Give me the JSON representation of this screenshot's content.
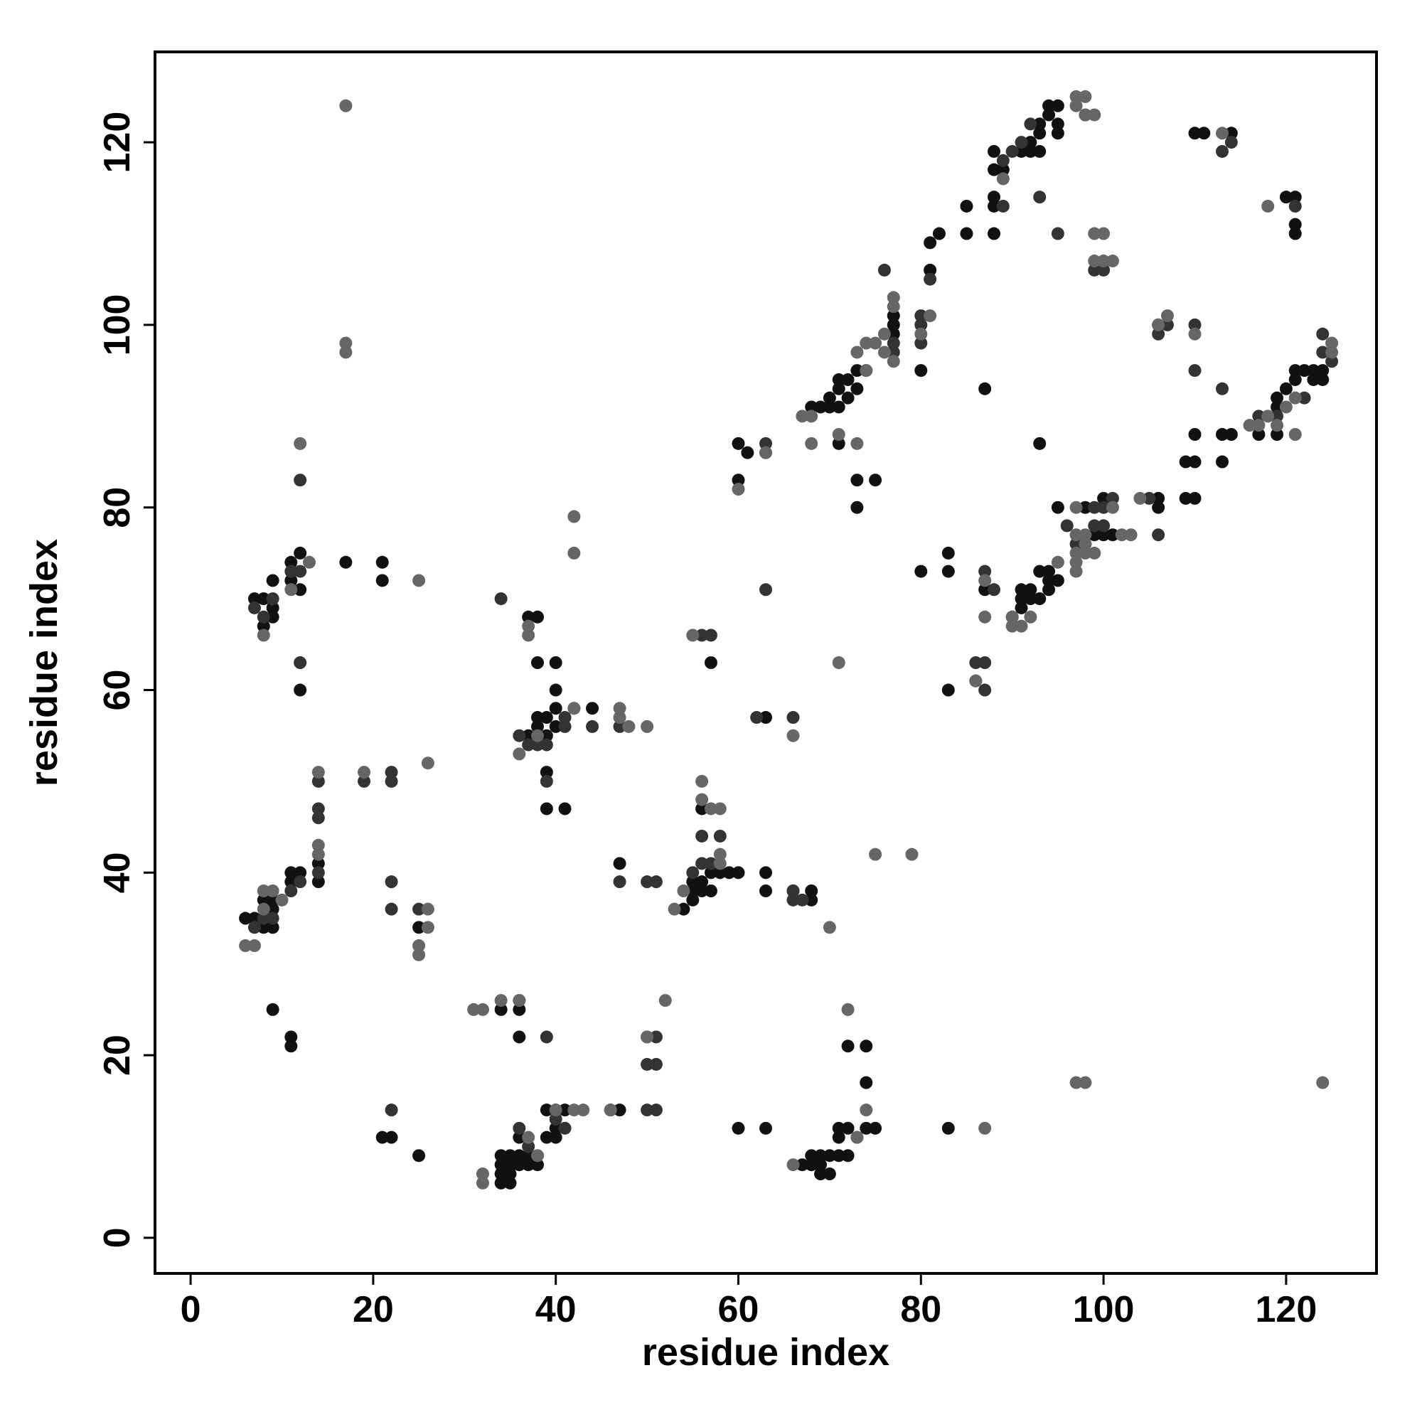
{
  "chart_data": {
    "type": "scatter",
    "x_label": "residue index",
    "y_label": "residue index",
    "xlim": [
      -3.9,
      129.9
    ],
    "ylim": [
      -3.9,
      129.9
    ],
    "xticks": [
      0,
      20,
      40,
      60,
      80,
      100,
      120
    ],
    "yticks": [
      0,
      20,
      40,
      60,
      80,
      100,
      120
    ],
    "series": [
      {
        "color": "#111111",
        "x": [
          7,
          8,
          9,
          9,
          9,
          8,
          11,
          12,
          12,
          11,
          12,
          17,
          21,
          21,
          6,
          7,
          8,
          8,
          9,
          9,
          9,
          11,
          11,
          12,
          14,
          14,
          9,
          11,
          11,
          21,
          22,
          25,
          25,
          34,
          34,
          34,
          34,
          35,
          35,
          35,
          35,
          36,
          36,
          36,
          37,
          37,
          38,
          39,
          39,
          40,
          40,
          40,
          41,
          46,
          47,
          34,
          36,
          36,
          37,
          38,
          38,
          40,
          40,
          38,
          39,
          40,
          40,
          39,
          38,
          37,
          39,
          39,
          41,
          44,
          47,
          55,
          55,
          56,
          56,
          57,
          57,
          58,
          59,
          60,
          56,
          54,
          55,
          63,
          63,
          60,
          63,
          66,
          68,
          68,
          63,
          60,
          60,
          61,
          57,
          67,
          68,
          68,
          69,
          69,
          69,
          70,
          70,
          71,
          71,
          71,
          72,
          72,
          72,
          73,
          74,
          74,
          74,
          75,
          83,
          68,
          69,
          70,
          70,
          71,
          71,
          71,
          72,
          72,
          73,
          73,
          74,
          71,
          73,
          75,
          73,
          77,
          77,
          77,
          80,
          81,
          81,
          82,
          85,
          85,
          88,
          88,
          88,
          88,
          88,
          89,
          91,
          92,
          92,
          93,
          93,
          93,
          94,
          94,
          95,
          95,
          95,
          87,
          93,
          95,
          80,
          83,
          83,
          83,
          87,
          90,
          91,
          91,
          91,
          92,
          92,
          93,
          93,
          94,
          94,
          95,
          94,
          99,
          100,
          101,
          98,
          100,
          106,
          106,
          109,
          110,
          109,
          110,
          110,
          113,
          113,
          114,
          117,
          119,
          119,
          119,
          120,
          121,
          121,
          122,
          123,
          123,
          124,
          124,
          110,
          111,
          114,
          120,
          121,
          121,
          121
        ],
        "values": [
          70,
          70,
          69,
          72,
          68,
          67,
          74,
          75,
          71,
          72,
          60,
          74,
          74,
          72,
          35,
          35,
          34,
          37,
          34,
          37,
          36,
          40,
          39,
          40,
          41,
          39,
          25,
          22,
          21,
          11,
          11,
          9,
          34,
          9,
          8,
          7,
          6,
          9,
          8,
          7,
          6,
          9,
          8,
          11,
          9,
          8,
          8,
          11,
          14,
          11,
          12,
          14,
          14,
          14,
          14,
          25,
          22,
          25,
          68,
          68,
          63,
          63,
          60,
          57,
          57,
          56,
          58,
          55,
          56,
          55,
          51,
          47,
          47,
          58,
          41,
          38,
          37,
          38,
          39,
          38,
          40,
          40,
          40,
          40,
          47,
          36,
          39,
          40,
          38,
          12,
          12,
          38,
          38,
          37,
          57,
          83,
          87,
          86,
          63,
          8,
          8,
          9,
          8,
          9,
          7,
          9,
          7,
          9,
          11,
          12,
          12,
          9,
          21,
          11,
          12,
          21,
          17,
          12,
          12,
          91,
          91,
          92,
          91,
          93,
          94,
          91,
          92,
          94,
          93,
          95,
          95,
          87,
          83,
          83,
          80,
          100,
          101,
          99,
          95,
          106,
          109,
          110,
          113,
          110,
          113,
          114,
          117,
          119,
          110,
          117,
          119,
          119,
          120,
          121,
          122,
          119,
          123,
          124,
          121,
          122,
          124,
          93,
          87,
          80,
          73,
          75,
          73,
          60,
          71,
          68,
          69,
          70,
          71,
          70,
          71,
          73,
          70,
          71,
          72,
          72,
          73,
          77,
          77,
          77,
          80,
          81,
          81,
          80,
          81,
          81,
          85,
          85,
          88,
          85,
          88,
          88,
          88,
          88,
          91,
          92,
          93,
          94,
          95,
          95,
          94,
          95,
          94,
          95,
          121,
          121,
          121,
          114,
          114,
          111,
          110
        ]
      },
      {
        "color": "#333333",
        "x": [
          7,
          8,
          9,
          8,
          9,
          7,
          11,
          12,
          12,
          12,
          14,
          14,
          14,
          19,
          22,
          22,
          22,
          22,
          25,
          11,
          12,
          14,
          36,
          37,
          38,
          39,
          39,
          41,
          41,
          42,
          44,
          47,
          47,
          50,
          51,
          50,
          51,
          50,
          51,
          50,
          51,
          40,
          41,
          38,
          37,
          36,
          56,
          57,
          58,
          56,
          55,
          62,
          66,
          66,
          67,
          66,
          63,
          56,
          63,
          63,
          57,
          34,
          22,
          39,
          36,
          76,
          77,
          77,
          80,
          80,
          80,
          81,
          86,
          86,
          87,
          87,
          88,
          87,
          89,
          89,
          90,
          91,
          92,
          93,
          95,
          98,
          96,
          98,
          99,
          100,
          101,
          97,
          99,
          100,
          106,
          106,
          107,
          110,
          110,
          113,
          119,
          122,
          124,
          125,
          124,
          113,
          114,
          121,
          99,
          100,
          106,
          117,
          105
        ],
        "values": [
          69,
          68,
          70,
          35,
          35,
          34,
          73,
          73,
          63,
          83,
          47,
          46,
          50,
          50,
          51,
          50,
          39,
          36,
          36,
          38,
          39,
          40,
          55,
          54,
          54,
          54,
          50,
          56,
          57,
          58,
          56,
          56,
          39,
          39,
          39,
          22,
          22,
          19,
          19,
          14,
          14,
          13,
          12,
          9,
          10,
          12,
          44,
          41,
          44,
          41,
          40,
          57,
          38,
          37,
          37,
          57,
          71,
          66,
          87,
          86,
          66,
          70,
          14,
          22,
          26,
          106,
          97,
          98,
          100,
          98,
          101,
          105,
          61,
          63,
          63,
          60,
          71,
          73,
          113,
          118,
          119,
          120,
          122,
          114,
          110,
          123,
          78,
          76,
          80,
          80,
          81,
          76,
          78,
          78,
          99,
          100,
          100,
          100,
          95,
          93,
          90,
          92,
          97,
          96,
          99,
          119,
          120,
          113,
          106,
          106,
          77,
          90,
          81
        ]
      },
      {
        "color": "#666666",
        "x": [
          6,
          7,
          8,
          8,
          9,
          10,
          8,
          11,
          13,
          12,
          14,
          14,
          14,
          17,
          17,
          17,
          19,
          25,
          26,
          25,
          25,
          26,
          26,
          31,
          32,
          32,
          32,
          34,
          36,
          37,
          38,
          40,
          42,
          43,
          42,
          42,
          42,
          46,
          36,
          37,
          37,
          38,
          47,
          48,
          47,
          50,
          52,
          50,
          53,
          54,
          56,
          56,
          57,
          58,
          58,
          58,
          55,
          60,
          63,
          66,
          66,
          67,
          68,
          68,
          71,
          71,
          73,
          72,
          74,
          73,
          75,
          79,
          70,
          87,
          87,
          86,
          73,
          74,
          75,
          76,
          76,
          77,
          77,
          77,
          80,
          81,
          74,
          87,
          89,
          90,
          91,
          92,
          90,
          95,
          97,
          97,
          97,
          98,
          97,
          98,
          97,
          99,
          98,
          101,
          102,
          103,
          99,
          100,
          99,
          100,
          101,
          97,
          98,
          97,
          98,
          99,
          97,
          98,
          104,
          106,
          107,
          110,
          116,
          117,
          118,
          119,
          120,
          121,
          125,
          125,
          124,
          118,
          113,
          121
        ],
        "values": [
          32,
          32,
          36,
          38,
          38,
          37,
          66,
          71,
          74,
          87,
          51,
          42,
          43,
          124,
          97,
          98,
          51,
          72,
          52,
          32,
          31,
          36,
          34,
          25,
          25,
          7,
          6,
          26,
          26,
          11,
          9,
          14,
          14,
          14,
          79,
          75,
          58,
          14,
          53,
          66,
          67,
          55,
          58,
          56,
          57,
          56,
          26,
          22,
          36,
          38,
          50,
          48,
          47,
          47,
          42,
          41,
          66,
          82,
          86,
          55,
          8,
          90,
          90,
          87,
          63,
          88,
          87,
          25,
          14,
          11,
          42,
          42,
          34,
          12,
          68,
          61,
          97,
          98,
          98,
          97,
          99,
          103,
          102,
          96,
          99,
          101,
          95,
          72,
          116,
          68,
          67,
          68,
          67,
          74,
          73,
          74,
          75,
          75,
          77,
          77,
          80,
          75,
          76,
          80,
          77,
          77,
          110,
          110,
          107,
          107,
          107,
          125,
          125,
          124,
          123,
          123,
          17,
          17,
          81,
          100,
          101,
          99,
          89,
          89,
          90,
          89,
          91,
          92,
          97,
          98,
          17,
          113,
          121,
          88
        ]
      }
    ]
  }
}
